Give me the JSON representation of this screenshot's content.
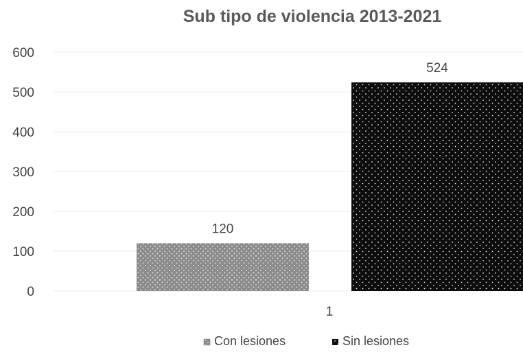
{
  "chart_data": {
    "type": "bar",
    "title": "Sub tipo de violencia 2013-2021",
    "categories": [
      "1"
    ],
    "series": [
      {
        "name": "Con lesiones",
        "values": [
          120
        ],
        "color": "#8c8c8c",
        "pattern": "light-dots"
      },
      {
        "name": "Sin lesiones",
        "values": [
          524
        ],
        "color": "#0d0d0d",
        "pattern": "dark-dots"
      }
    ],
    "ylim": [
      0,
      600
    ],
    "yticks": [
      0,
      100,
      200,
      300,
      400,
      500,
      600
    ],
    "grid": true,
    "legend": "bottom"
  }
}
